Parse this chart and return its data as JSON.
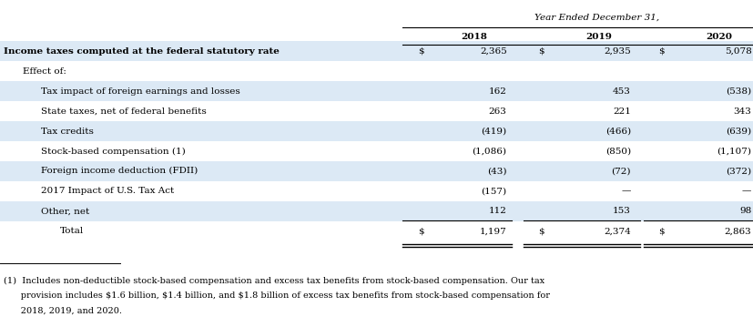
{
  "header_main": "Year Ended December 31,",
  "years": [
    "2018",
    "2019",
    "2020"
  ],
  "rows": [
    {
      "label": "Income taxes computed at the federal statutory rate",
      "indent": 0,
      "bold": true,
      "dollar_sign": true,
      "values": [
        "2,365",
        "2,935",
        "5,078"
      ],
      "bg": "#dce9f5"
    },
    {
      "label": "Effect of:",
      "indent": 1,
      "bold": false,
      "dollar_sign": false,
      "values": [
        "",
        "",
        ""
      ],
      "bg": "#ffffff"
    },
    {
      "label": "Tax impact of foreign earnings and losses",
      "indent": 2,
      "bold": false,
      "dollar_sign": false,
      "values": [
        "162",
        "453",
        "(538)"
      ],
      "bg": "#dce9f5"
    },
    {
      "label": "State taxes, net of federal benefits",
      "indent": 2,
      "bold": false,
      "dollar_sign": false,
      "values": [
        "263",
        "221",
        "343"
      ],
      "bg": "#ffffff"
    },
    {
      "label": "Tax credits",
      "indent": 2,
      "bold": false,
      "dollar_sign": false,
      "values": [
        "(419)",
        "(466)",
        "(639)"
      ],
      "bg": "#dce9f5"
    },
    {
      "label": "Stock-based compensation (1)",
      "indent": 2,
      "bold": false,
      "dollar_sign": false,
      "values": [
        "(1,086)",
        "(850)",
        "(1,107)"
      ],
      "bg": "#ffffff"
    },
    {
      "label": "Foreign income deduction (FDII)",
      "indent": 2,
      "bold": false,
      "dollar_sign": false,
      "values": [
        "(43)",
        "(72)",
        "(372)"
      ],
      "bg": "#dce9f5"
    },
    {
      "label": "2017 Impact of U.S. Tax Act",
      "indent": 2,
      "bold": false,
      "dollar_sign": false,
      "values": [
        "(157)",
        "—",
        "—"
      ],
      "bg": "#ffffff"
    },
    {
      "label": "Other, net",
      "indent": 2,
      "bold": false,
      "dollar_sign": false,
      "values": [
        "112",
        "153",
        "98"
      ],
      "bg": "#dce9f5"
    },
    {
      "label": "Total",
      "indent": 3,
      "bold": false,
      "dollar_sign": true,
      "values": [
        "1,197",
        "2,374",
        "2,863"
      ],
      "bg": "#ffffff",
      "total_row": true
    }
  ],
  "footnote_line1": "(1)  Includes non-deductible stock-based compensation and excess tax benefits from stock-based compensation. Our tax",
  "footnote_line2": "      provision includes $1.6 billion, $1.4 billion, and $1.8 billion of excess tax benefits from stock-based compensation for",
  "footnote_line3": "      2018, 2019, and 2020.",
  "font_size": 7.5,
  "fn_font_size": 7.0
}
